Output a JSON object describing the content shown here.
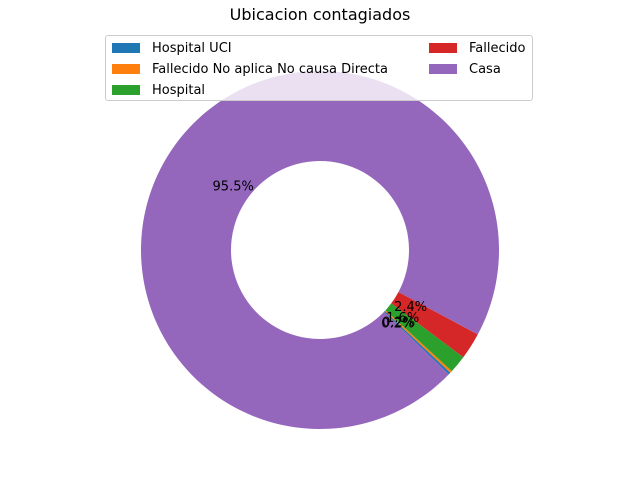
{
  "chart_data": {
    "type": "pie",
    "style": "donut",
    "title": "Ubicacion contagiados",
    "legend_position": "top",
    "categories": [
      "Hospital UCI",
      "Fallecido No aplica No causa Directa",
      "Hospital",
      "Fallecido",
      "Casa"
    ],
    "values": [
      0.2,
      0.2,
      1.6,
      2.4,
      95.5
    ],
    "labels": [
      "0.2%",
      "0.2%",
      "1.6%",
      "2.4%",
      "95.5%"
    ],
    "colors": [
      "#1f77b4",
      "#ff7f0e",
      "#2ca02c",
      "#d62728",
      "#9467bd"
    ]
  }
}
